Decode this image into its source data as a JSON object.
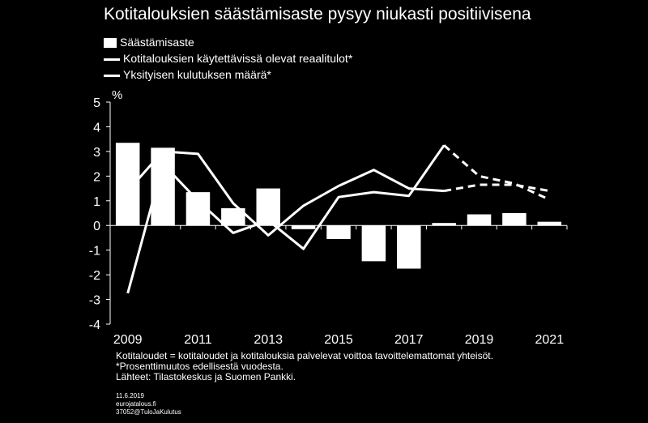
{
  "chart_data": {
    "type": "bar",
    "title": "Kotitalouksien säästämisaste pysyy niukasti positiivisena",
    "ylabel": "%",
    "ylim": [
      -4,
      5
    ],
    "yticks": [
      -4,
      -3,
      -2,
      -1,
      0,
      1,
      2,
      3,
      4,
      5
    ],
    "xlim": [
      2008.5,
      2021.5
    ],
    "xticks": [
      "2009",
      "2011",
      "2013",
      "2015",
      "2017",
      "2019",
      "2021"
    ],
    "forecast_from": 2018,
    "legend_position": "top-left",
    "grid": false,
    "series": [
      {
        "name": "Säästämisaste",
        "kind": "bar",
        "x": [
          2009,
          2010,
          2011,
          2012,
          2013,
          2014,
          2015,
          2016,
          2017,
          2018,
          2019,
          2020,
          2021
        ],
        "values": [
          3.35,
          3.15,
          1.35,
          0.7,
          1.5,
          -0.15,
          -0.55,
          -1.45,
          -1.75,
          0.1,
          0.45,
          0.5,
          0.15
        ]
      },
      {
        "name": "Kotitalouksien käytettävissä olevat reaalitulot*",
        "kind": "line",
        "x": [
          2009,
          2010,
          2011,
          2012,
          2013,
          2014,
          2015,
          2016,
          2017,
          2018,
          2019,
          2020,
          2021
        ],
        "values": [
          1.4,
          3.0,
          2.9,
          0.9,
          -0.4,
          0.8,
          1.6,
          2.25,
          1.5,
          1.4,
          1.65,
          1.65,
          1.4
        ]
      },
      {
        "name": "Yksityisen kulutuksen määrä*",
        "kind": "line",
        "x": [
          2009,
          2010,
          2011,
          2012,
          2013,
          2014,
          2015,
          2016,
          2017,
          2018,
          2019,
          2020,
          2021
        ],
        "values": [
          -2.75,
          2.5,
          1.0,
          -0.3,
          0.2,
          -0.95,
          1.15,
          1.35,
          1.2,
          3.25,
          2.0,
          1.7,
          1.05
        ]
      }
    ]
  },
  "footnotes": [
    "Kotitaloudet = kotitaloudet ja kotitalouksia palvelevat voittoa tavoittelemattomat yhteisöt.",
    "*Prosenttimuutos  edellisestä vuodesta.",
    "Lähteet: Tilastokeskus ja Suomen Pankki."
  ],
  "meta": [
    "11.6.2019",
    "eurojatalous.fi",
    "37052@TuloJaKulutus"
  ]
}
